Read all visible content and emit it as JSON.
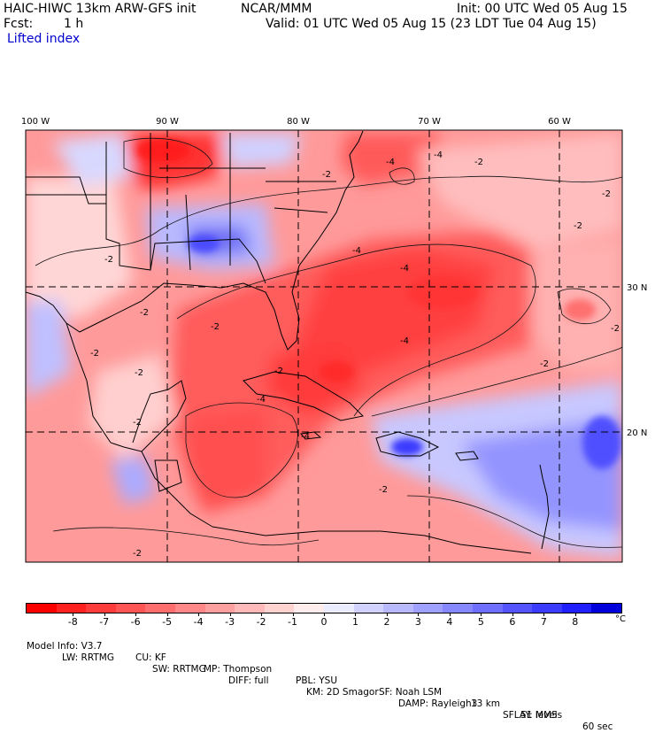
{
  "header": {
    "model": "HAIC-HIWC 13km ARW-GFS init",
    "org": "NCAR/MMM",
    "init": "Init: 00 UTC Wed 05 Aug 15",
    "fcst_label": "Fcst:",
    "fcst_value": "1 h",
    "valid": "Valid: 01 UTC Wed 05 Aug 15 (23 LDT Tue 04 Aug 15)",
    "field": "Lifted index"
  },
  "map": {
    "lon_labels": [
      "100 W",
      "90 W",
      "80 W",
      "70 W",
      "60 W"
    ],
    "lat_labels": [
      "30 N",
      "20 N"
    ],
    "contour_labels": [
      "-2",
      "-4"
    ],
    "colors": {
      "negative_strong": "#ff0000",
      "negative_mid": "#ff6f6f",
      "negative_weak": "#ffc8c8",
      "neutral": "#ffffff",
      "positive_weak": "#d2d2ff",
      "positive_mid": "#7070f0",
      "positive_strong": "#0000dd"
    }
  },
  "colorbar": {
    "labels": [
      "-8",
      "-7",
      "-6",
      "-5",
      "-4",
      "-3",
      "-2",
      "-1",
      "0",
      "1",
      "2",
      "3",
      "4",
      "5",
      "6",
      "7",
      "8"
    ],
    "unit": "°C",
    "swatches": [
      "#ff0000",
      "#ff2020",
      "#ff3c3c",
      "#ff5555",
      "#ff6e6e",
      "#ff8787",
      "#ffa0a0",
      "#ffb9b9",
      "#ffd2d2",
      "#ffecec",
      "#ececff",
      "#d2d2ff",
      "#b9b9ff",
      "#a0a0ff",
      "#8787ff",
      "#6e6eff",
      "#5555ff",
      "#3c3cff",
      "#2020ff",
      "#0000dd"
    ]
  },
  "model_info": {
    "line1": [
      "Model Info: V3.7",
      "CU: KF",
      "MP: Thompson",
      "PBL: YSU",
      "SF: Noah LSM",
      "13 km",
      "51 levels",
      "60 sec"
    ],
    "line2": [
      "LW: RRTMG",
      "SW: RRTMG",
      "DIFF: full",
      "KM: 2D Smagor",
      "DAMP: Rayleigh3",
      "SFLAY: MM5"
    ]
  }
}
